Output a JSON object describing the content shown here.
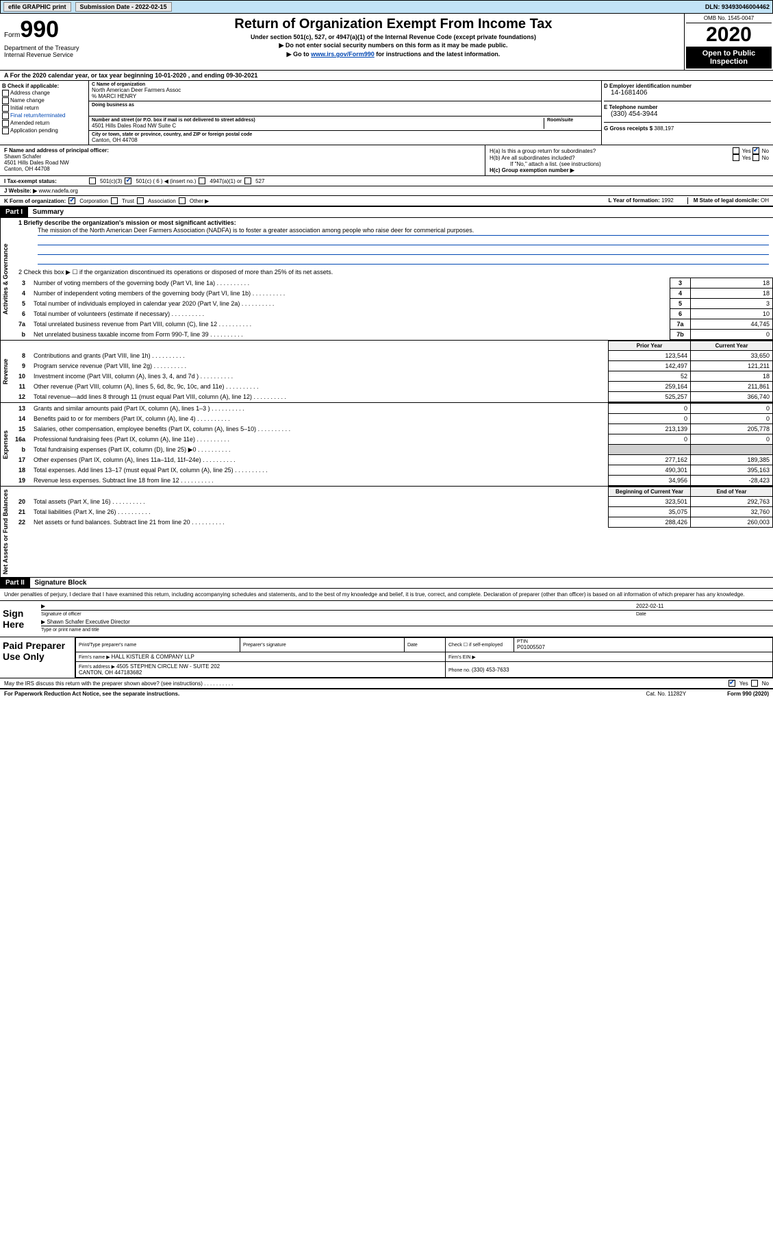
{
  "topbar": {
    "efile": "efile GRAPHIC print",
    "submission_label": "Submission Date - ",
    "submission_date": "2022-02-15",
    "dln_label": "DLN: ",
    "dln": "93493046004462"
  },
  "header": {
    "form_word": "Form",
    "form_num": "990",
    "dept": "Department of the Treasury\nInternal Revenue Service",
    "title": "Return of Organization Exempt From Income Tax",
    "sub": "Under section 501(c), 527, or 4947(a)(1) of the Internal Revenue Code (except private foundations)",
    "note1": "▶ Do not enter social security numbers on this form as it may be made public.",
    "note2_pre": "▶ Go to ",
    "note2_link": "www.irs.gov/Form990",
    "note2_post": " for instructions and the latest information.",
    "omb": "OMB No. 1545-0047",
    "year": "2020",
    "inspection": "Open to Public Inspection"
  },
  "period": "For the 2020 calendar year, or tax year beginning 10-01-2020    , and ending 09-30-2021",
  "box_b": {
    "label": "B Check if applicable:",
    "items": [
      "Address change",
      "Name change",
      "Initial return",
      "Final return/terminated",
      "Amended return",
      "Application pending"
    ]
  },
  "box_c": {
    "name_label": "C Name of organization",
    "name": "North American Deer Farmers Assoc",
    "care_of": "% MARCI HENRY",
    "dba_label": "Doing business as",
    "dba": "",
    "street_label": "Number and street (or P.O. box if mail is not delivered to street address)",
    "suite_label": "Room/suite",
    "street": "4501 Hills Dales Road NW Suite C",
    "city_label": "City or town, state or province, country, and ZIP or foreign postal code",
    "city": "Canton, OH  44708"
  },
  "box_d": {
    "ein_label": "D Employer identification number",
    "ein": "14-1681406",
    "phone_label": "E Telephone number",
    "phone": "(330) 454-3944",
    "receipts_label": "G Gross receipts $ ",
    "receipts": "388,197"
  },
  "officer": {
    "label": "F  Name and address of principal officer:",
    "name": "Shawn Schafer",
    "addr1": "4501 Hills Dales Road NW",
    "addr2": "Canton, OH  44708"
  },
  "box_h": {
    "a_label": "H(a)  Is this a group return for subordinates?",
    "b_label": "H(b)  Are all subordinates included?",
    "b_note": "If \"No,\" attach a list. (see instructions)",
    "c_label": "H(c)  Group exemption number ▶"
  },
  "tax_status": {
    "label": "I   Tax-exempt status:",
    "opts": [
      "501(c)(3)",
      "501(c) ( 6 ) ◀ (insert no.)",
      "4947(a)(1) or",
      "527"
    ]
  },
  "website": {
    "label": "J   Website: ▶  ",
    "value": "www.nadefa.org"
  },
  "kform": {
    "label": "K Form of organization:",
    "opts": [
      "Corporation",
      "Trust",
      "Association",
      "Other ▶"
    ],
    "year_label": "L Year of formation: ",
    "year": "1992",
    "state_label": "M State of legal domicile: ",
    "state": "OH"
  },
  "part1": {
    "header": "Part I",
    "title": "Summary",
    "q1_label": "1  Briefly describe the organization's mission or most significant activities:",
    "q1_text": "The mission of the North American Deer Farmers Association (NADFA) is to foster a greater association among people who raise deer for commerical purposes.",
    "q2": "2   Check this box ▶ ☐  if the organization discontinued its operations or disposed of more than 25% of its net assets.",
    "sections": {
      "governance": "Activities & Governance",
      "revenue": "Revenue",
      "expenses": "Expenses",
      "netassets": "Net Assets or Fund Balances"
    },
    "gov_rows": [
      {
        "n": "3",
        "t": "Number of voting members of the governing body (Part VI, line 1a)",
        "b": "3",
        "v": "18"
      },
      {
        "n": "4",
        "t": "Number of independent voting members of the governing body (Part VI, line 1b)",
        "b": "4",
        "v": "18"
      },
      {
        "n": "5",
        "t": "Total number of individuals employed in calendar year 2020 (Part V, line 2a)",
        "b": "5",
        "v": "3"
      },
      {
        "n": "6",
        "t": "Total number of volunteers (estimate if necessary)",
        "b": "6",
        "v": "10"
      },
      {
        "n": "7a",
        "t": "Total unrelated business revenue from Part VIII, column (C), line 12",
        "b": "7a",
        "v": "44,745"
      },
      {
        "n": "b",
        "t": "Net unrelated business taxable income from Form 990-T, line 39",
        "b": "7b",
        "v": "0"
      }
    ],
    "prior_head": "Prior Year",
    "current_head": "Current Year",
    "rev_rows": [
      {
        "n": "8",
        "t": "Contributions and grants (Part VIII, line 1h)",
        "p": "123,544",
        "c": "33,650"
      },
      {
        "n": "9",
        "t": "Program service revenue (Part VIII, line 2g)",
        "p": "142,497",
        "c": "121,211"
      },
      {
        "n": "10",
        "t": "Investment income (Part VIII, column (A), lines 3, 4, and 7d )",
        "p": "52",
        "c": "18"
      },
      {
        "n": "11",
        "t": "Other revenue (Part VIII, column (A), lines 5, 6d, 8c, 9c, 10c, and 11e)",
        "p": "259,164",
        "c": "211,861"
      },
      {
        "n": "12",
        "t": "Total revenue—add lines 8 through 11 (must equal Part VIII, column (A), line 12)",
        "p": "525,257",
        "c": "366,740"
      }
    ],
    "exp_rows": [
      {
        "n": "13",
        "t": "Grants and similar amounts paid (Part IX, column (A), lines 1–3 )",
        "p": "0",
        "c": "0"
      },
      {
        "n": "14",
        "t": "Benefits paid to or for members (Part IX, column (A), line 4)",
        "p": "0",
        "c": "0"
      },
      {
        "n": "15",
        "t": "Salaries, other compensation, employee benefits (Part IX, column (A), lines 5–10)",
        "p": "213,139",
        "c": "205,778"
      },
      {
        "n": "16a",
        "t": "Professional fundraising fees (Part IX, column (A), line 11e)",
        "p": "0",
        "c": "0"
      },
      {
        "n": "b",
        "t": "Total fundraising expenses (Part IX, column (D), line 25) ▶0",
        "p": "",
        "c": "",
        "grey": true
      },
      {
        "n": "17",
        "t": "Other expenses (Part IX, column (A), lines 11a–11d, 11f–24e)",
        "p": "277,162",
        "c": "189,385"
      },
      {
        "n": "18",
        "t": "Total expenses. Add lines 13–17 (must equal Part IX, column (A), line 25)",
        "p": "490,301",
        "c": "395,163"
      },
      {
        "n": "19",
        "t": "Revenue less expenses. Subtract line 18 from line 12",
        "p": "34,956",
        "c": "-28,423"
      }
    ],
    "begin_head": "Beginning of Current Year",
    "end_head": "End of Year",
    "na_rows": [
      {
        "n": "20",
        "t": "Total assets (Part X, line 16)",
        "p": "323,501",
        "c": "292,763"
      },
      {
        "n": "21",
        "t": "Total liabilities (Part X, line 26)",
        "p": "35,075",
        "c": "32,760"
      },
      {
        "n": "22",
        "t": "Net assets or fund balances. Subtract line 21 from line 20",
        "p": "288,426",
        "c": "260,003"
      }
    ]
  },
  "part2": {
    "header": "Part II",
    "title": "Signature Block",
    "declaration": "Under penalties of perjury, I declare that I have examined this return, including accompanying schedules and statements, and to the best of my knowledge and belief, it is true, correct, and complete. Declaration of preparer (other than officer) is based on all information of which preparer has any knowledge."
  },
  "sign": {
    "label": "Sign Here",
    "sig_label": "Signature of officer",
    "date_label": "Date",
    "date": "2022-02-11",
    "name": "Shawn Schafer  Executive Director",
    "name_label": "Type or print name and title"
  },
  "preparer": {
    "label": "Paid Preparer Use Only",
    "print_label": "Print/Type preparer's name",
    "sig_label": "Preparer's signature",
    "date_label": "Date",
    "self_label": "Check ☐ if self-employed",
    "ptin_label": "PTIN",
    "ptin": "P01005507",
    "firm_name_label": "Firm's name   ▶ ",
    "firm_name": "HALL KISTLER & COMPANY LLP",
    "firm_ein_label": "Firm's EIN ▶",
    "firm_addr_label": "Firm's address ▶ ",
    "firm_addr": "4505 STEPHEN CIRCLE NW - SUITE 202\nCANTON, OH  447183682",
    "phone_label": "Phone no. ",
    "phone": "(330) 453-7633"
  },
  "discuss": "May the IRS discuss this return with the preparer shown above? (see instructions)",
  "footer": {
    "left": "For Paperwork Reduction Act Notice, see the separate instructions.",
    "mid": "Cat. No. 11282Y",
    "right": "Form 990 (2020)"
  }
}
